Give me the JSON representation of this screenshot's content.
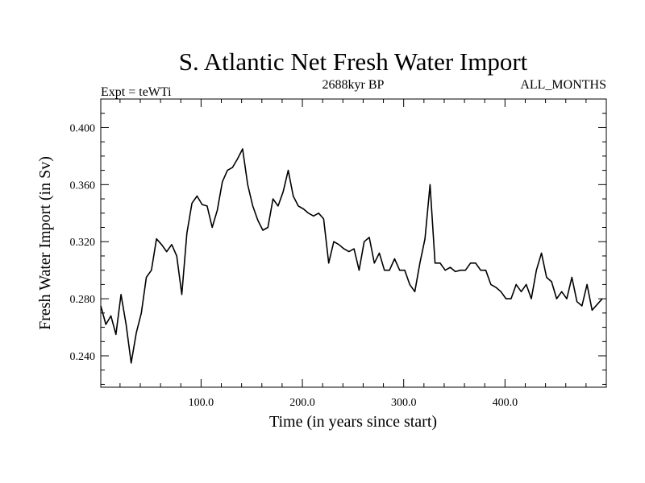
{
  "chart_data": {
    "type": "line",
    "title": "S. Atlantic Net Fresh Water Import",
    "subtitle_left": "Expt = teWTi",
    "subtitle_center": "2688kyr BP",
    "subtitle_right": "ALL_MONTHS",
    "xlabel": "Time (in years since start)",
    "ylabel": "Fresh Water Import (in Sv)",
    "xlim": [
      1,
      500
    ],
    "ylim": [
      0.218,
      0.42
    ],
    "x_ticks": [
      100,
      200,
      300,
      400
    ],
    "x_tick_labels": [
      "100.0",
      "200.0",
      "300.0",
      "400.0"
    ],
    "y_ticks": [
      0.24,
      0.28,
      0.32,
      0.36,
      0.4
    ],
    "y_tick_labels": [
      "0.240",
      "0.280",
      "0.320",
      "0.360",
      "0.400"
    ],
    "grid": false,
    "series": [
      {
        "name": "Fresh Water Import",
        "x_start": 1,
        "x_step": 5,
        "values": [
          0.275,
          0.262,
          0.268,
          0.255,
          0.283,
          0.262,
          0.235,
          0.256,
          0.27,
          0.295,
          0.3,
          0.322,
          0.318,
          0.313,
          0.318,
          0.31,
          0.283,
          0.326,
          0.347,
          0.352,
          0.346,
          0.345,
          0.33,
          0.342,
          0.362,
          0.37,
          0.372,
          0.378,
          0.385,
          0.36,
          0.345,
          0.335,
          0.328,
          0.33,
          0.35,
          0.345,
          0.355,
          0.37,
          0.352,
          0.345,
          0.343,
          0.34,
          0.338,
          0.34,
          0.336,
          0.305,
          0.32,
          0.318,
          0.315,
          0.313,
          0.315,
          0.3,
          0.32,
          0.323,
          0.305,
          0.312,
          0.3,
          0.3,
          0.308,
          0.3,
          0.3,
          0.29,
          0.285,
          0.305,
          0.322,
          0.36,
          0.305,
          0.305,
          0.3,
          0.302,
          0.299,
          0.3,
          0.3,
          0.305,
          0.305,
          0.3,
          0.3,
          0.29,
          0.288,
          0.285,
          0.28,
          0.28,
          0.29,
          0.285,
          0.29,
          0.28,
          0.3,
          0.312,
          0.295,
          0.292,
          0.28,
          0.285,
          0.28,
          0.295,
          0.278,
          0.275,
          0.29,
          0.272,
          0.276,
          0.28
        ]
      }
    ]
  }
}
